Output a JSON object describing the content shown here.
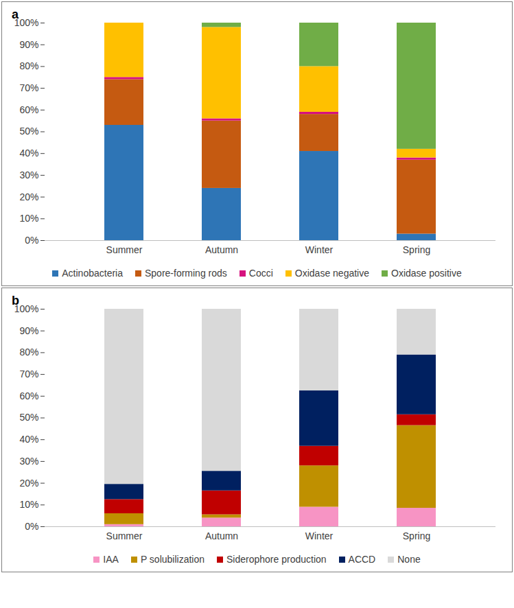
{
  "chart_data": [
    {
      "type": "bar",
      "title": "a",
      "stacked": true,
      "grid": false,
      "legend": "bottom",
      "categories": [
        "Summer",
        "Autumn",
        "Winter",
        "Spring"
      ],
      "ylim": [
        0,
        100
      ],
      "yticks": [
        {
          "value": 0,
          "label": "0%"
        },
        {
          "value": 10,
          "label": "10%"
        },
        {
          "value": 20,
          "label": "20%"
        },
        {
          "value": 30,
          "label": "30%"
        },
        {
          "value": 40,
          "label": "40%"
        },
        {
          "value": 50,
          "label": "50%"
        },
        {
          "value": 60,
          "label": "60%"
        },
        {
          "value": 70,
          "label": "70%"
        },
        {
          "value": 80,
          "label": "80%"
        },
        {
          "value": 90,
          "label": "90%"
        },
        {
          "value": 100,
          "label": "100%"
        }
      ],
      "series": [
        {
          "name": "Actinobacteria",
          "color": "#2e75b6",
          "values": [
            53,
            24,
            41,
            3
          ]
        },
        {
          "name": "Spore-forming rods",
          "color": "#c55a11",
          "values": [
            21,
            31,
            17,
            34
          ]
        },
        {
          "name": "Cocci",
          "color": "#d6127e",
          "values": [
            1,
            1,
            1,
            1
          ]
        },
        {
          "name": "Oxidase negative",
          "color": "#ffc000",
          "values": [
            25,
            42,
            21,
            4
          ]
        },
        {
          "name": "Oxidase positive",
          "color": "#70ad47",
          "values": [
            0,
            2,
            20,
            58
          ]
        }
      ]
    },
    {
      "type": "bar",
      "title": "b",
      "stacked": true,
      "grid": false,
      "legend": "bottom",
      "categories": [
        "Summer",
        "Autumn",
        "Winter",
        "Spring"
      ],
      "ylim": [
        0,
        100
      ],
      "yticks": [
        {
          "value": 0,
          "label": "0%"
        },
        {
          "value": 10,
          "label": "10%"
        },
        {
          "value": 20,
          "label": "20%"
        },
        {
          "value": 30,
          "label": "30%"
        },
        {
          "value": 40,
          "label": "40%"
        },
        {
          "value": 50,
          "label": "50%"
        },
        {
          "value": 60,
          "label": "60%"
        },
        {
          "value": 70,
          "label": "70%"
        },
        {
          "value": 80,
          "label": "80%"
        },
        {
          "value": 90,
          "label": "90%"
        },
        {
          "value": 100,
          "label": "100%"
        }
      ],
      "series": [
        {
          "name": "IAA",
          "color": "#f794c4",
          "values": [
            1,
            4,
            9,
            8.5
          ]
        },
        {
          "name": "P solubilization",
          "color": "#bf9000",
          "values": [
            5,
            1.5,
            19,
            38
          ]
        },
        {
          "name": "Siderophore production",
          "color": "#c00000",
          "values": [
            6.5,
            11,
            9,
            5
          ]
        },
        {
          "name": "ACCD",
          "color": "#002060",
          "values": [
            7,
            9,
            25.5,
            27.5
          ]
        },
        {
          "name": "None",
          "color": "#d9d9d9",
          "values": [
            80.5,
            74.5,
            37.5,
            21
          ]
        }
      ]
    }
  ]
}
